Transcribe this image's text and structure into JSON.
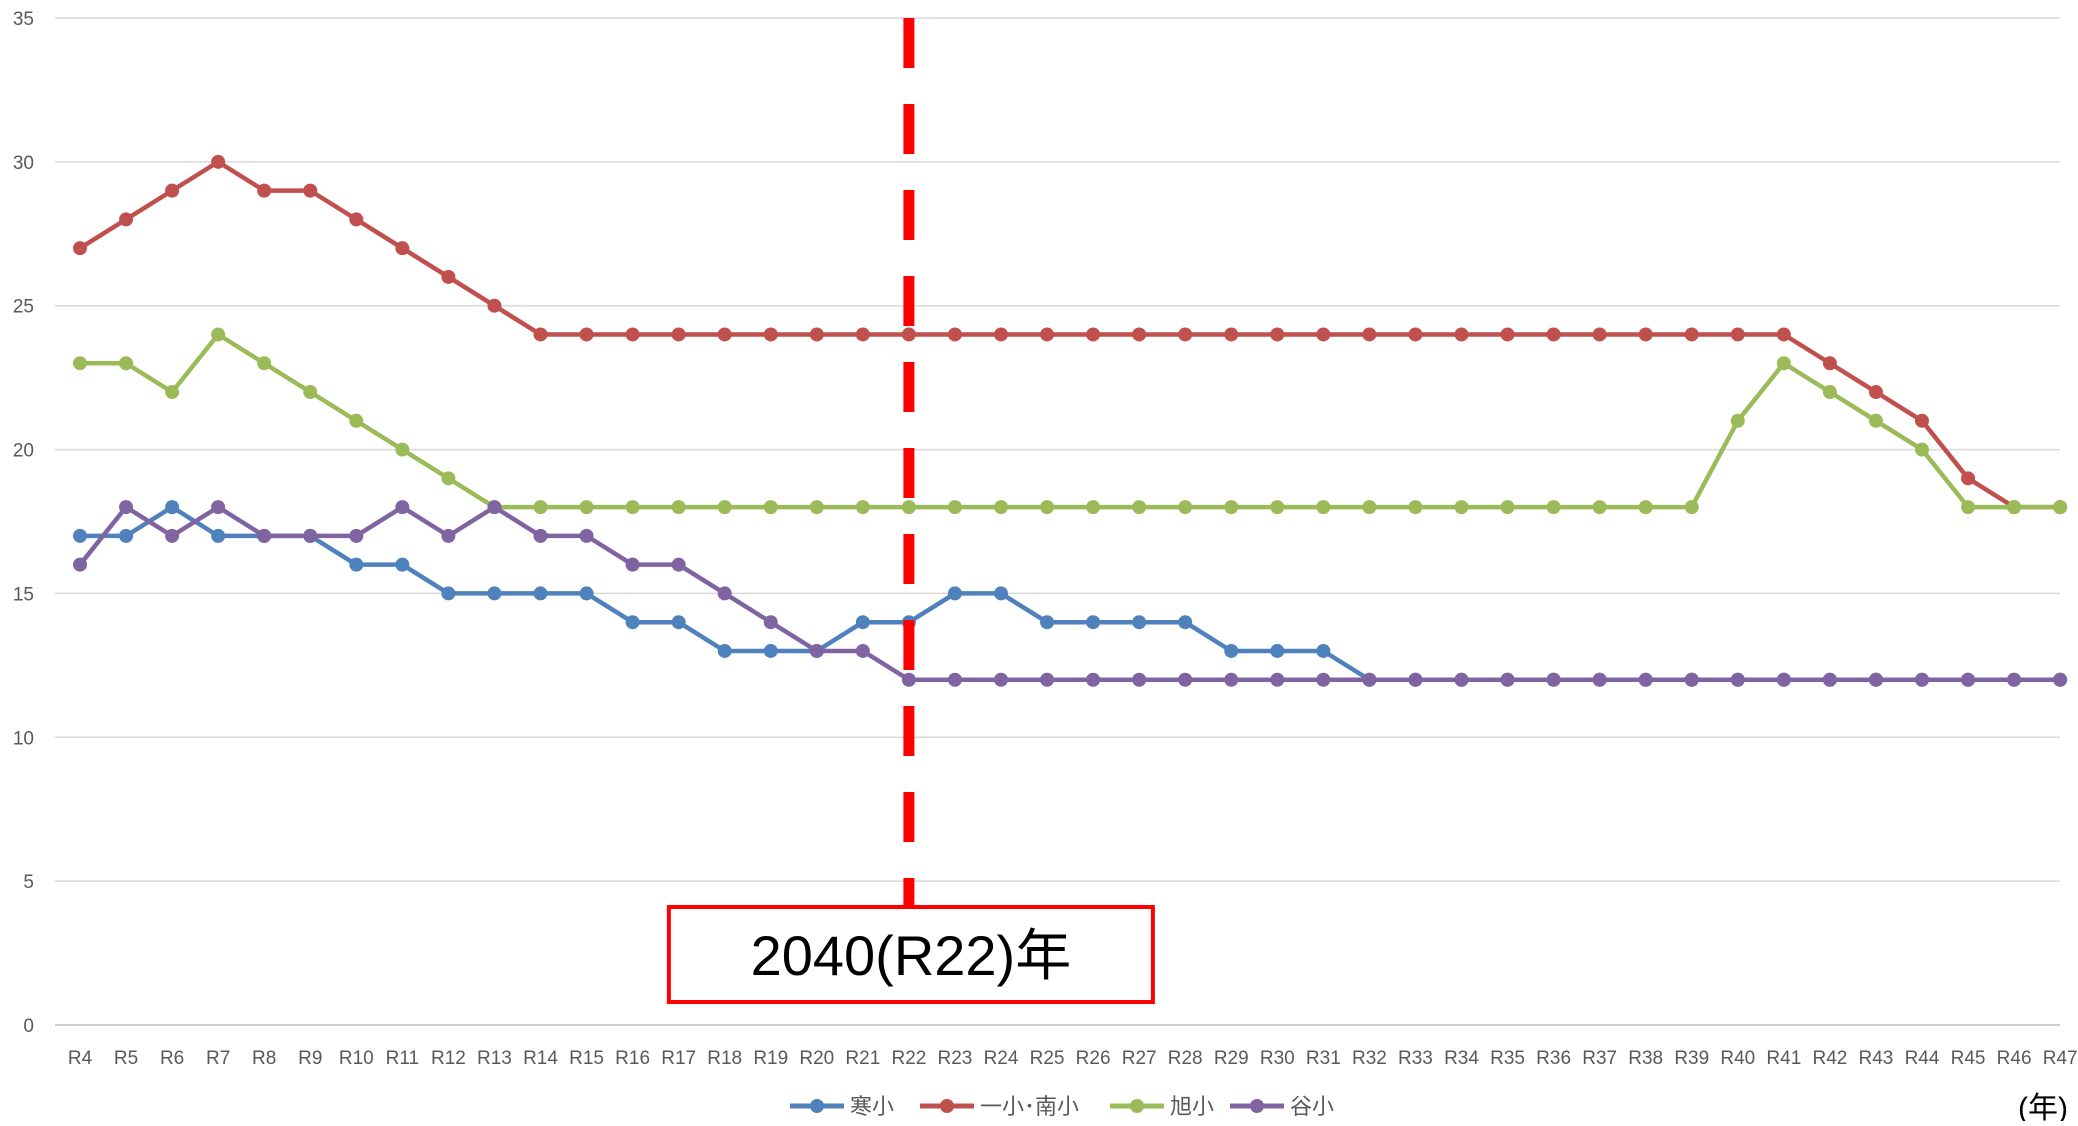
{
  "chart_data": {
    "type": "line",
    "categories": [
      "R4",
      "R5",
      "R6",
      "R7",
      "R8",
      "R9",
      "R10",
      "R11",
      "R12",
      "R13",
      "R14",
      "R15",
      "R16",
      "R17",
      "R18",
      "R19",
      "R20",
      "R21",
      "R22",
      "R23",
      "R24",
      "R25",
      "R26",
      "R27",
      "R28",
      "R29",
      "R30",
      "R31",
      "R32",
      "R33",
      "R34",
      "R35",
      "R36",
      "R37",
      "R38",
      "R39",
      "R40",
      "R41",
      "R42",
      "R43",
      "R44",
      "R45",
      "R46",
      "R47"
    ],
    "ylim": [
      0,
      35
    ],
    "yticks": [
      0,
      5,
      10,
      15,
      20,
      25,
      30,
      35
    ],
    "grid": true,
    "legend_position": "bottom",
    "x_unit_label": "(年)",
    "series": [
      {
        "name": "寒小",
        "color": "#4f81bd",
        "values": [
          17,
          17,
          18,
          17,
          17,
          17,
          16,
          16,
          15,
          15,
          15,
          15,
          14,
          14,
          13,
          13,
          13,
          14,
          14,
          15,
          15,
          14,
          14,
          14,
          14,
          13,
          13,
          13,
          12,
          12,
          12,
          12,
          12,
          12,
          12,
          12,
          12,
          12,
          12,
          12,
          12,
          12,
          12,
          12
        ]
      },
      {
        "name": "一小･南小",
        "color": "#c0504d",
        "values": [
          27,
          28,
          29,
          30,
          29,
          29,
          28,
          27,
          26,
          25,
          24,
          24,
          24,
          24,
          24,
          24,
          24,
          24,
          24,
          24,
          24,
          24,
          24,
          24,
          24,
          24,
          24,
          24,
          24,
          24,
          24,
          24,
          24,
          24,
          24,
          24,
          24,
          24,
          23,
          22,
          21,
          19,
          18,
          18
        ]
      },
      {
        "name": "旭小",
        "color": "#9bbb59",
        "values": [
          23,
          23,
          22,
          24,
          23,
          22,
          21,
          20,
          19,
          18,
          18,
          18,
          18,
          18,
          18,
          18,
          18,
          18,
          18,
          18,
          18,
          18,
          18,
          18,
          18,
          18,
          18,
          18,
          18,
          18,
          18,
          18,
          18,
          18,
          18,
          18,
          21,
          23,
          22,
          21,
          20,
          18,
          18,
          18
        ]
      },
      {
        "name": "谷小",
        "color": "#8064a2",
        "values": [
          16,
          18,
          17,
          18,
          17,
          17,
          17,
          18,
          17,
          18,
          17,
          17,
          16,
          16,
          15,
          14,
          13,
          13,
          12,
          12,
          12,
          12,
          12,
          12,
          12,
          12,
          12,
          12,
          12,
          12,
          12,
          12,
          12,
          12,
          12,
          12,
          12,
          12,
          12,
          12,
          12,
          12,
          12,
          12
        ]
      }
    ],
    "annotation": {
      "label": "2040(R22)年",
      "category": "R22",
      "line_color": "#ff0000",
      "box_color": "#ff0000"
    }
  }
}
